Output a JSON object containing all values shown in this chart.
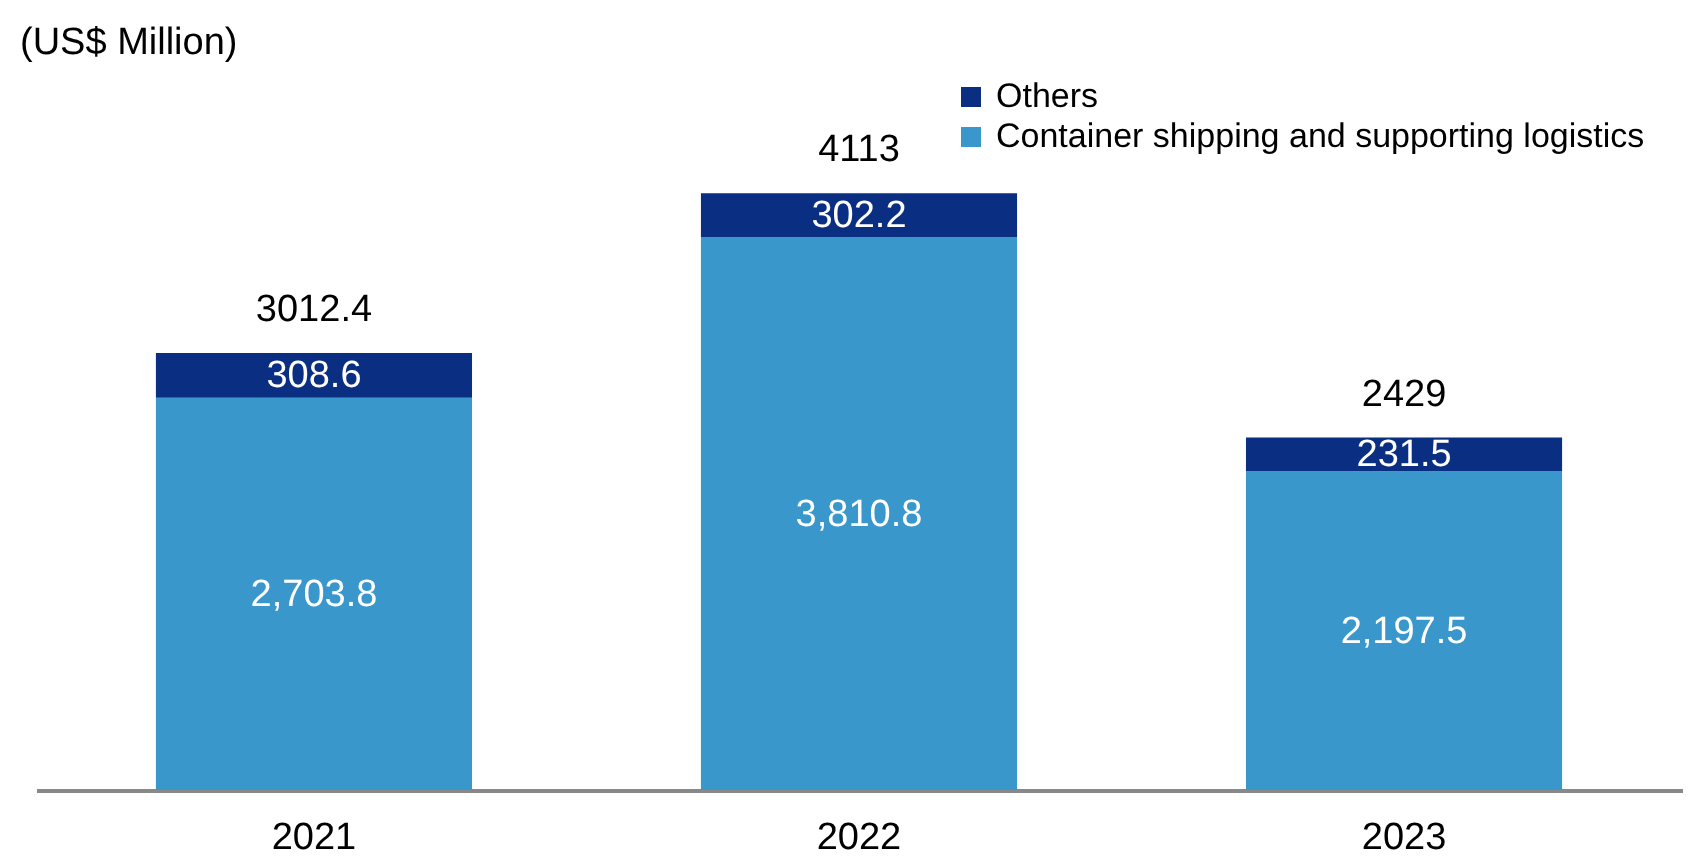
{
  "chart_data": {
    "type": "bar",
    "stacked": true,
    "ylabel": "(US$ Million)",
    "categories": [
      "2021",
      "2022",
      "2023"
    ],
    "series": [
      {
        "name": "Container shipping and supporting logistics",
        "color": "#3a97cc",
        "values": [
          2703.8,
          3810.8,
          2197.5
        ],
        "value_labels": [
          "2,703.8",
          "3,810.8",
          "2,197.5"
        ]
      },
      {
        "name": "Others",
        "color": "#0a2e82",
        "values": [
          308.6,
          302.2,
          231.5
        ],
        "value_labels": [
          "308.6",
          "302.2",
          "231.5"
        ]
      }
    ],
    "totals": [
      "3012.4",
      "4113",
      "2429"
    ],
    "legend": "top right",
    "grid": false
  }
}
